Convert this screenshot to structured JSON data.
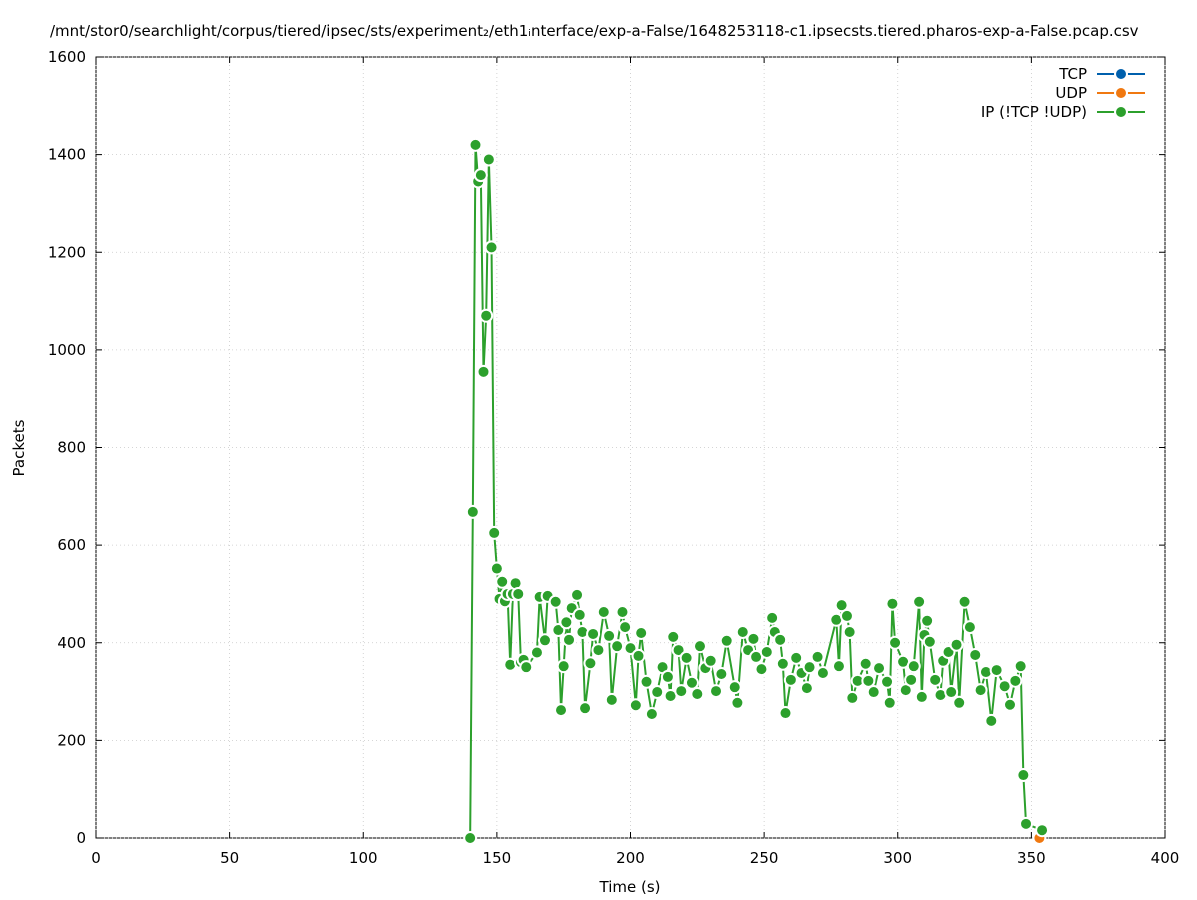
{
  "chart_data": {
    "type": "line",
    "title": "/mnt/stor0/searchlight/corpus/tiered/ipsec/sts/experiment₂/eth1ᵢnterface/exp-a-False/1648253118-c1.ipsecsts.tiered.pharos-exp-a-False.pcap.csv",
    "x_label": "Time (s)",
    "y_label": "Packets",
    "xlim": [
      0,
      400
    ],
    "xticks": [
      0,
      50,
      100,
      150,
      200,
      250,
      300,
      350,
      400
    ],
    "ylim": [
      0,
      1600
    ],
    "yticks": [
      0,
      200,
      400,
      600,
      800,
      1000,
      1200,
      1400,
      1600
    ],
    "grid": true,
    "legend": "top-right",
    "series": [
      {
        "name": "TCP",
        "color": "#0060ad",
        "x": [],
        "values": []
      },
      {
        "name": "UDP",
        "color": "#f07810",
        "x": [
          353
        ],
        "values": [
          0
        ]
      },
      {
        "name": "IP (!TCP  !UDP)",
        "color": "#2ca02c",
        "x": [
          140,
          141,
          142,
          143,
          144,
          145,
          146,
          147,
          148,
          149,
          150,
          151,
          152,
          153,
          154,
          155,
          156,
          157,
          158,
          159,
          160,
          161,
          165,
          166,
          168,
          169,
          172,
          173,
          174,
          175,
          176,
          177,
          178,
          180,
          181,
          182,
          183,
          185,
          186,
          188,
          190,
          192,
          193,
          195,
          197,
          198,
          200,
          202,
          203,
          204,
          206,
          208,
          210,
          212,
          214,
          215,
          216,
          218,
          219,
          221,
          223,
          225,
          226,
          228,
          230,
          232,
          234,
          236,
          239,
          240,
          242,
          244,
          246,
          247,
          249,
          251,
          253,
          254,
          256,
          257,
          258,
          260,
          262,
          264,
          266,
          267,
          270,
          272,
          277,
          278,
          279,
          281,
          282,
          283,
          285,
          288,
          289,
          291,
          293,
          296,
          297,
          298,
          299,
          302,
          303,
          305,
          306,
          308,
          309,
          310,
          311,
          312,
          314,
          316,
          317,
          319,
          320,
          322,
          323,
          325,
          327,
          329,
          331,
          333,
          335,
          337,
          340,
          342,
          344,
          346,
          347,
          348,
          354
        ],
        "values": [
          0,
          668,
          1420,
          1345,
          1358,
          955,
          1070,
          1390,
          1210,
          625,
          552,
          490,
          525,
          485,
          500,
          355,
          500,
          522,
          500,
          360,
          365,
          350,
          380,
          494,
          405,
          496,
          484,
          426,
          262,
          352,
          442,
          406,
          471,
          498,
          457,
          422,
          266,
          358,
          418,
          385,
          463,
          414,
          283,
          393,
          463,
          432,
          389,
          272,
          373,
          420,
          320,
          254,
          299,
          350,
          330,
          291,
          412,
          385,
          301,
          369,
          318,
          295,
          393,
          348,
          363,
          301,
          336,
          404,
          309,
          277,
          422,
          385,
          408,
          371,
          346,
          381,
          451,
          422,
          406,
          357,
          256,
          324,
          369,
          338,
          307,
          350,
          371,
          338,
          447,
          352,
          477,
          455,
          422,
          287,
          322,
          357,
          322,
          299,
          348,
          320,
          277,
          480,
          400,
          361,
          303,
          324,
          352,
          484,
          289,
          416,
          445,
          402,
          324,
          293,
          363,
          381,
          299,
          396,
          277,
          484,
          432,
          375,
          303,
          340,
          240,
          344,
          311,
          273,
          322,
          352,
          129,
          29,
          16
        ]
      }
    ]
  }
}
